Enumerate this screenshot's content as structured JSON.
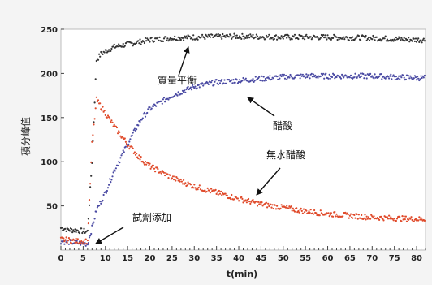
{
  "chart_data": {
    "type": "scatter",
    "ylabel": "積分峰值",
    "xlabel": "t(min)",
    "xlim": [
      0,
      82
    ],
    "ylim": [
      0,
      250
    ],
    "xticks": [
      0,
      5,
      10,
      15,
      20,
      25,
      30,
      35,
      40,
      45,
      50,
      55,
      60,
      65,
      70,
      75,
      80
    ],
    "yticks": [
      50,
      100,
      150,
      200,
      250
    ],
    "grid": false,
    "annotations": [
      {
        "text": "質量平衡"
      },
      {
        "text": "醋酸"
      },
      {
        "text": "無水醋酸"
      },
      {
        "text": "試劑添加"
      }
    ],
    "series": [
      {
        "key": "mass_balance",
        "color": "#333333",
        "x": [
          0,
          2,
          4,
          6,
          7,
          8,
          9,
          10,
          12,
          15,
          20,
          25,
          30,
          40,
          50,
          60,
          70,
          80,
          82
        ],
        "y": [
          25,
          23,
          22,
          21,
          100,
          215,
          222,
          225,
          230,
          233,
          238,
          240,
          241,
          242,
          241,
          241,
          240,
          238,
          238
        ]
      },
      {
        "key": "acetic_acid",
        "color": "#4a4aa3",
        "x": [
          0,
          2,
          4,
          6,
          7,
          8,
          10,
          12,
          15,
          18,
          20,
          25,
          30,
          35,
          40,
          45,
          50,
          55,
          60,
          65,
          70,
          75,
          80,
          82
        ],
        "y": [
          10,
          9,
          8,
          7,
          25,
          45,
          65,
          90,
          120,
          148,
          160,
          175,
          185,
          190,
          192,
          194,
          196,
          197,
          197,
          197,
          197,
          196,
          195,
          195
        ]
      },
      {
        "key": "acetic_anhydride",
        "color": "#e04a2a",
        "x": [
          0,
          2,
          4,
          6,
          7,
          8,
          10,
          12,
          15,
          18,
          20,
          25,
          30,
          35,
          40,
          45,
          50,
          55,
          60,
          65,
          70,
          75,
          80,
          82
        ],
        "y": [
          12,
          11,
          10,
          10,
          120,
          170,
          155,
          140,
          120,
          103,
          95,
          82,
          72,
          65,
          58,
          52,
          48,
          44,
          41,
          39,
          37,
          36,
          35,
          35
        ]
      }
    ]
  }
}
